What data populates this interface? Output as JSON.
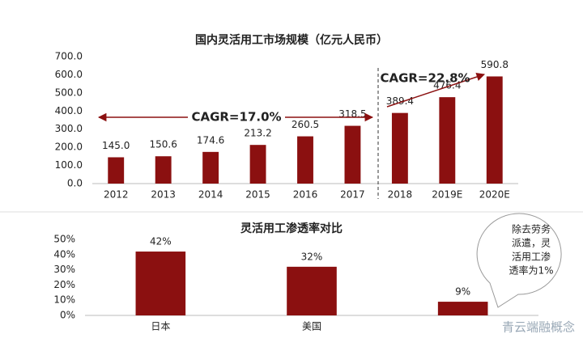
{
  "chart_data": [
    {
      "type": "bar",
      "title": "国内灵活用工市场规模（亿元人民币）",
      "categories": [
        "2012",
        "2013",
        "2014",
        "2015",
        "2016",
        "2017",
        "2018",
        "2019E",
        "2020E"
      ],
      "values": [
        145.0,
        150.6,
        174.6,
        213.2,
        260.5,
        318.5,
        389.4,
        476.4,
        590.8
      ],
      "value_labels": [
        "145.0",
        "150.6",
        "174.6",
        "213.2",
        "260.5",
        "318.5",
        "389.4",
        "476.4",
        "590.8"
      ],
      "color": "#8b1010",
      "ylim": [
        0,
        700
      ],
      "yticks": [
        {
          "value": 0,
          "label": "0.0"
        },
        {
          "value": 100,
          "label": "100.0"
        },
        {
          "value": 200,
          "label": "200.0"
        },
        {
          "value": 300,
          "label": "300.0"
        },
        {
          "value": 400,
          "label": "400.0"
        },
        {
          "value": 500,
          "label": "500.0"
        },
        {
          "value": 600,
          "label": "600.0"
        },
        {
          "value": 700,
          "label": "700.0"
        }
      ],
      "annotations": [
        "CAGR=17.0%",
        "CAGR=22.8%"
      ]
    },
    {
      "type": "bar",
      "title": "灵活用工渗透率对比",
      "categories": [
        "日本",
        "美国",
        null
      ],
      "values": [
        42,
        32,
        9
      ],
      "value_labels": [
        "42%",
        "32%",
        "9%"
      ],
      "color": "#8b1010",
      "ylim": [
        0,
        50
      ],
      "yticks": [
        {
          "value": 0,
          "label": "0%"
        },
        {
          "value": 10,
          "label": "10%"
        },
        {
          "value": 20,
          "label": "20%"
        },
        {
          "value": 30,
          "label": "30%"
        },
        {
          "value": 40,
          "label": "40%"
        },
        {
          "value": 50,
          "label": "50%"
        }
      ],
      "annotations": [
        "除去劳务",
        "派遣，灵",
        "活用工渗",
        "透率为1%"
      ]
    }
  ],
  "watermark": "青云端融概念"
}
